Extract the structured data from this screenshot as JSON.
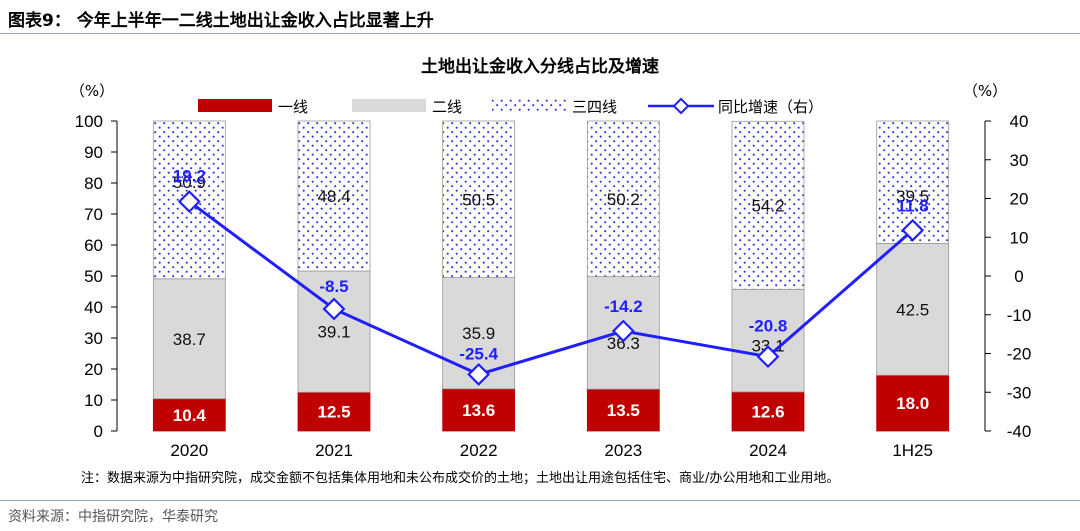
{
  "figure": {
    "title": "图表9：  今年上半年一二线土地出让金收入占比显著上升",
    "source": "资料来源：中指研究院，华泰研究"
  },
  "chart_data": {
    "type": "bar",
    "stacked": true,
    "title": "土地出让金收入分线占比及增速",
    "categories": [
      "2020",
      "2021",
      "2022",
      "2023",
      "2024",
      "1H25"
    ],
    "series": [
      {
        "name": "一线",
        "type": "bar",
        "axis": "left",
        "color": "#c00000",
        "values": [
          10.4,
          12.5,
          13.6,
          13.5,
          12.6,
          18.0
        ]
      },
      {
        "name": "二线",
        "type": "bar",
        "axis": "left",
        "color": "#d9d9d9",
        "values": [
          38.7,
          39.1,
          35.9,
          36.3,
          33.1,
          42.5
        ]
      },
      {
        "name": "三四线",
        "type": "bar",
        "axis": "left",
        "color": "#ffffff",
        "pattern": "blue-dots",
        "values": [
          50.9,
          48.4,
          50.5,
          50.2,
          54.2,
          39.5
        ]
      },
      {
        "name": "同比增速（右）",
        "type": "line",
        "axis": "right",
        "color": "#1f1fff",
        "marker": "diamond",
        "values": [
          19.2,
          -8.5,
          -25.4,
          -14.2,
          -20.8,
          11.8
        ]
      }
    ],
    "y_left": {
      "unit": "（%）",
      "ylim": [
        0,
        100
      ],
      "ticks": [
        0,
        10,
        20,
        30,
        40,
        50,
        60,
        70,
        80,
        90,
        100
      ]
    },
    "y_right": {
      "unit": "（%）",
      "ylim": [
        -40,
        40
      ],
      "ticks": [
        -40,
        -30,
        -20,
        -10,
        0,
        10,
        20,
        30,
        40
      ]
    },
    "legend_position": "top",
    "grid": false,
    "note": "注：数据来源为中指研究院，成交金额不包括集体用地和未公布成交价的土地；土地出让用途包括住宅、商业/办公用地和工业用地。"
  }
}
